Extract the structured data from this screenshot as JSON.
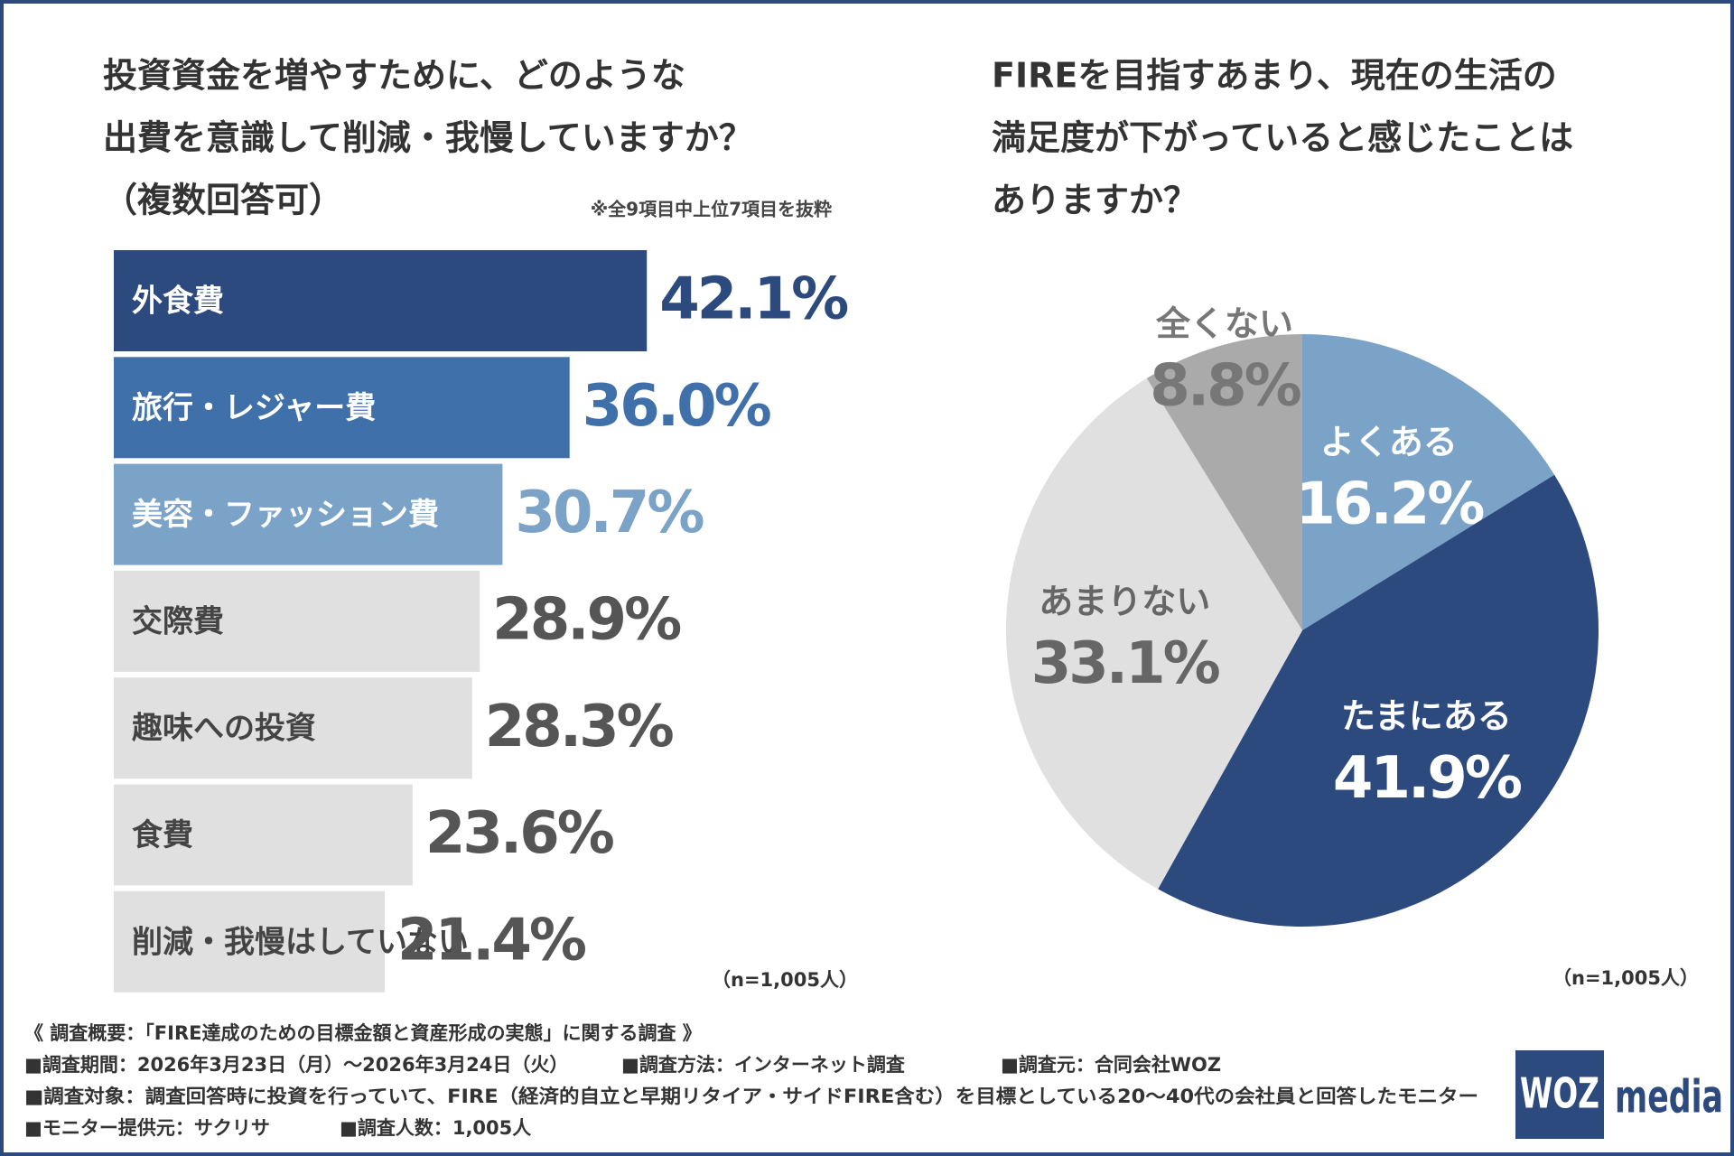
{
  "chart_data": [
    {
      "type": "bar",
      "title": [
        "投資資金を増やすために、どのような",
        "出費を意識して削減・我慢していますか？",
        "（複数回答可）"
      ],
      "note": "※全9項目中上位7項目を抜粋",
      "sample_size": "（n=1,005人）",
      "categories": [
        "外食費",
        "旅行・レジャー費",
        "美容・ファッション費",
        "交際費",
        "趣味への投資",
        "食費",
        "削減・我慢はしていない"
      ],
      "values": [
        42.1,
        36.0,
        30.7,
        28.9,
        28.3,
        23.6,
        21.4
      ],
      "value_labels": [
        "42.1%",
        "36.0%",
        "30.7%",
        "28.9%",
        "28.3%",
        "23.6%",
        "21.4%"
      ],
      "colors": [
        "#2d4a7f",
        "#3f70aa",
        "#7ba3c8",
        "#e0e0e0",
        "#e0e0e0",
        "#e0e0e0",
        "#e0e0e0"
      ],
      "text_colors": [
        "#ffffff",
        "#ffffff",
        "#ffffff",
        "#444444",
        "#444444",
        "#444444",
        "#444444"
      ],
      "value_colors": [
        "#2d4a7f",
        "#3f70aa",
        "#7ba3c8",
        "#555555",
        "#555555",
        "#555555",
        "#555555"
      ]
    },
    {
      "type": "pie",
      "title": [
        "FIREを目指すあまり、現在の生活の",
        "満足度が下がっていると感じたことは",
        "ありますか？"
      ],
      "sample_size": "（n=1,005人）",
      "categories": [
        "よくある",
        "たまにある",
        "あまりない",
        "全くない"
      ],
      "values": [
        16.2,
        41.9,
        33.1,
        8.8
      ],
      "value_labels": [
        "16.2%",
        "41.9%",
        "33.1%",
        "8.8%"
      ],
      "colors": [
        "#7ba3c8",
        "#2d4a7f",
        "#e0e0e0",
        "#aaaaaa"
      ],
      "text_colors": [
        "#ffffff",
        "#ffffff",
        "#666666",
        "#777777"
      ]
    }
  ],
  "footer": {
    "heading": "《 調査概要：「FIRE達成のための目標金額と資産形成の実態」に関する調査 》",
    "lines": [
      [
        "■調査期間：2026年3月23日（月）～2026年3月24日（火）",
        "■調査方法：インターネット調査",
        "■調査元：合同会社WOZ"
      ],
      [
        "■調査対象：調査回答時に投資を行っていて、FIRE（経済的自立と早期リタイア・サイドFIRE含む）を目標としている20～40代の会社員と回答したモニター"
      ],
      [
        "■モニター提供元：サクリサ",
        "■調査人数：1,005人"
      ]
    ]
  },
  "logo": {
    "mark": "WOZ",
    "text": "media"
  }
}
